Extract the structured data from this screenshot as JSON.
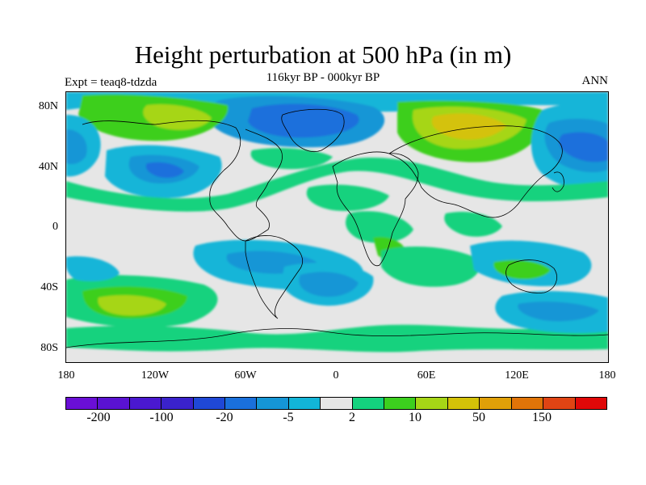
{
  "title": "Height perturbation at 500 hPa (in m)",
  "subtitle": "116kyr BP - 000kyr BP",
  "experiment": "Expt = teaq8-tdzda",
  "period": "ANN",
  "lat_labels": [
    "80N",
    "40N",
    "0",
    "40S",
    "80S"
  ],
  "lon_labels": [
    "180",
    "120W",
    "60W",
    "0",
    "60E",
    "120E",
    "180"
  ],
  "colorbar": {
    "colors": [
      "#6a0fd6",
      "#5a12d2",
      "#4a18d0",
      "#3a22cc",
      "#1f48d6",
      "#1a70dc",
      "#1596d6",
      "#12b5d8",
      "#e6e6e6",
      "#14d27e",
      "#3ccf1e",
      "#a6d616",
      "#d4c208",
      "#e0a008",
      "#e07408",
      "#e04414",
      "#e00808"
    ],
    "labels": [
      "-200",
      "-100",
      "-20",
      "-5",
      "2",
      "10",
      "50",
      "150"
    ]
  }
}
